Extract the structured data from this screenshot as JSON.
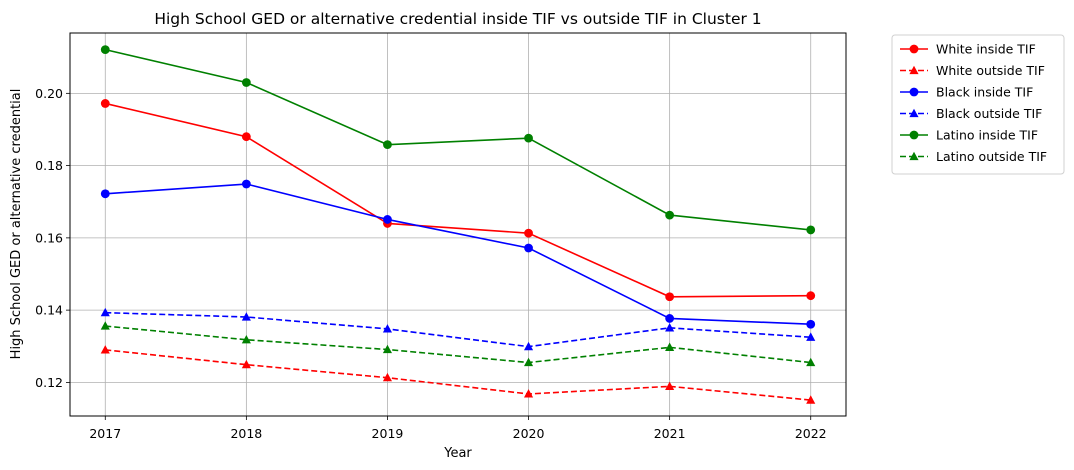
{
  "chart_data": {
    "type": "line",
    "title": "High School GED or alternative credential inside TIF vs outside TIF in Cluster 1",
    "xlabel": "Year",
    "ylabel": "High School GED or alternative credential",
    "x": [
      "2017",
      "2018",
      "2019",
      "2020",
      "2021",
      "2022"
    ],
    "xlim": [
      2016.75,
      2022.25
    ],
    "ylim": [
      0.1107,
      0.2167
    ],
    "yticks": [
      0.12,
      0.14,
      0.16,
      0.18,
      0.2
    ],
    "ytick_labels": [
      "0.12",
      "0.14",
      "0.16",
      "0.18",
      "0.20"
    ],
    "grid": true,
    "legend_position": "outside-top-right",
    "series": [
      {
        "name": "White inside TIF",
        "color": "#ff0000",
        "linestyle": "solid",
        "marker": "circle",
        "values": [
          0.1972,
          0.188,
          0.164,
          0.1613,
          0.1437,
          0.144
        ]
      },
      {
        "name": "White outside TIF",
        "color": "#ff0000",
        "linestyle": "dashed",
        "marker": "triangle",
        "values": [
          0.129,
          0.1249,
          0.1213,
          0.1168,
          0.1189,
          0.1151
        ]
      },
      {
        "name": "Black inside TIF",
        "color": "#0000ff",
        "linestyle": "solid",
        "marker": "circle",
        "values": [
          0.1722,
          0.1749,
          0.1651,
          0.1572,
          0.1377,
          0.1361
        ]
      },
      {
        "name": "Black outside TIF",
        "color": "#0000ff",
        "linestyle": "dashed",
        "marker": "triangle",
        "values": [
          0.1393,
          0.1381,
          0.1348,
          0.1299,
          0.1351,
          0.1325
        ]
      },
      {
        "name": "Latino inside TIF",
        "color": "#008000",
        "linestyle": "solid",
        "marker": "circle",
        "values": [
          0.2121,
          0.203,
          0.1858,
          0.1876,
          0.1663,
          0.1622
        ]
      },
      {
        "name": "Latino outside TIF",
        "color": "#008000",
        "linestyle": "dashed",
        "marker": "triangle",
        "values": [
          0.1356,
          0.1318,
          0.1291,
          0.1255,
          0.1297,
          0.1255
        ]
      }
    ]
  }
}
